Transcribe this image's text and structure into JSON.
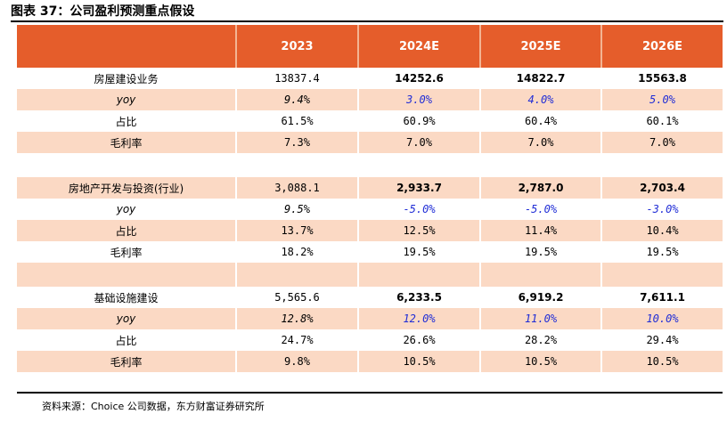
{
  "title": "图表 37：公司盈利预测重点假设",
  "columns": [
    "",
    "2023",
    "2024E",
    "2025E",
    "2026E"
  ],
  "sections": [
    {
      "name": "房屋建设业务",
      "values": [
        "13837.4",
        "14252.6",
        "14822.7",
        "15563.8"
      ],
      "yoy_label": "yoy",
      "yoy": [
        "9.4%",
        "3.0%",
        "4.0%",
        "5.0%"
      ],
      "share_label": "占比",
      "share": [
        "61.5%",
        "60.9%",
        "60.4%",
        "60.1%"
      ],
      "margin_label": "毛利率",
      "margin": [
        "7.3%",
        "7.0%",
        "7.0%",
        "7.0%"
      ]
    },
    {
      "name": "房地产开发与投资(行业)",
      "values": [
        "3,088.1",
        "2,933.7",
        "2,787.0",
        "2,703.4"
      ],
      "yoy_label": "yoy",
      "yoy": [
        "9.5%",
        "-5.0%",
        "-5.0%",
        "-3.0%"
      ],
      "share_label": "占比",
      "share": [
        "13.7%",
        "12.5%",
        "11.4%",
        "10.4%"
      ],
      "margin_label": "毛利率",
      "margin": [
        "18.2%",
        "19.5%",
        "19.5%",
        "19.5%"
      ]
    },
    {
      "name": "基础设施建设",
      "values": [
        "5,565.6",
        "6,233.5",
        "6,919.2",
        "7,611.1"
      ],
      "yoy_label": "yoy",
      "yoy": [
        "12.8%",
        "12.0%",
        "11.0%",
        "10.0%"
      ],
      "share_label": "占比",
      "share": [
        "24.7%",
        "26.6%",
        "28.2%",
        "29.4%"
      ],
      "margin_label": "毛利率",
      "margin": [
        "9.8%",
        "10.5%",
        "10.5%",
        "10.5%"
      ]
    }
  ],
  "source": "资料来源：Choice 公司数据，东方财富证券研究所",
  "colors": {
    "header": "#e55d2b",
    "band": "#fbd9c4",
    "forecast_text": "#1f2cd6"
  }
}
